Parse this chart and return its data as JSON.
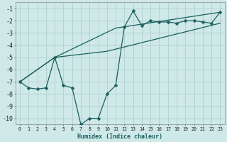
{
  "xlabel": "Humidex (Indice chaleur)",
  "background_color": "#cfe8e8",
  "grid_color": "#b0d0d0",
  "line_color": "#1a5f5f",
  "xlim": [
    -0.5,
    23.5
  ],
  "ylim": [
    -10.5,
    -0.5
  ],
  "xticks": [
    0,
    1,
    2,
    3,
    4,
    5,
    6,
    7,
    8,
    9,
    10,
    11,
    12,
    13,
    14,
    15,
    16,
    17,
    18,
    19,
    20,
    21,
    22,
    23
  ],
  "yticks": [
    -1,
    -2,
    -3,
    -4,
    -5,
    -6,
    -7,
    -8,
    -9,
    -10
  ],
  "line1_x": [
    0,
    1,
    2,
    3,
    4,
    5,
    6,
    7,
    8,
    9,
    10,
    11,
    12,
    13,
    14,
    15,
    16,
    17,
    18,
    19,
    20,
    21,
    22,
    23
  ],
  "line1_y": [
    -7.0,
    -7.5,
    -7.6,
    -7.5,
    -5.0,
    -7.3,
    -7.5,
    -10.5,
    -10.0,
    -10.0,
    -8.0,
    -7.3,
    -2.5,
    -1.2,
    -2.4,
    -2.0,
    -2.1,
    -2.1,
    -2.2,
    -2.0,
    -2.0,
    -2.1,
    -2.2,
    -1.3
  ],
  "line2_x": [
    0,
    4,
    11,
    23
  ],
  "line2_y": [
    -7.0,
    -5.0,
    -2.6,
    -1.3
  ],
  "line3_x": [
    0,
    4,
    10,
    23
  ],
  "line3_y": [
    -7.0,
    -5.0,
    -4.5,
    -2.2
  ],
  "markersize": 2.5,
  "linewidth": 0.9
}
